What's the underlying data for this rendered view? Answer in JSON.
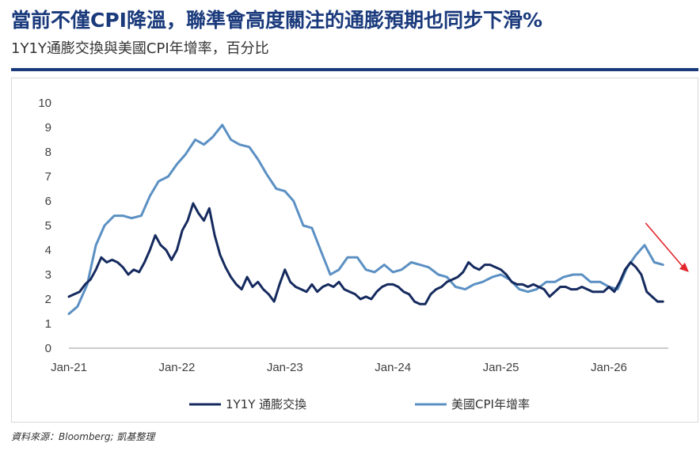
{
  "header": {
    "title": "當前不僅CPI降溫，聯準會高度關注的通膨預期也同步下滑%",
    "subtitle": "1Y1Y通膨交換與美國CPI年增率，百分比"
  },
  "footer": {
    "source": "資料來源：Bloomberg; 凱基整理"
  },
  "colors": {
    "title": "#1a3a7c",
    "series_1": "#152a5e",
    "series_2": "#5b90c3",
    "arrow": "#e3262a"
  },
  "chart_data": {
    "type": "line",
    "title": "",
    "xlabel": "",
    "ylabel": "",
    "ylim": [
      0,
      10
    ],
    "yticks": [
      "0",
      "1",
      "2",
      "3",
      "4",
      "5",
      "6",
      "7",
      "8",
      "9",
      "10"
    ],
    "xticks": [
      {
        "label": "Jan-21",
        "x": 2021.0
      },
      {
        "label": "Jan-22",
        "x": 2022.0
      },
      {
        "label": "Jan-23",
        "x": 2023.0
      },
      {
        "label": "Jan-24",
        "x": 2024.0
      },
      {
        "label": "Jan-25",
        "x": 2025.0
      },
      {
        "label": "Jan-26",
        "x": 2026.0
      }
    ],
    "xlim": [
      2021.0,
      2026.55
    ],
    "grid": false,
    "legend": "bottom",
    "series": [
      {
        "name": "1Y1Y 通膨交換",
        "x": [
          2021.0,
          2021.05,
          2021.1,
          2021.15,
          2021.2,
          2021.25,
          2021.3,
          2021.35,
          2021.4,
          2021.45,
          2021.5,
          2021.55,
          2021.6,
          2021.65,
          2021.7,
          2021.75,
          2021.8,
          2021.85,
          2021.9,
          2021.95,
          2022.0,
          2022.05,
          2022.1,
          2022.15,
          2022.2,
          2022.25,
          2022.3,
          2022.35,
          2022.4,
          2022.45,
          2022.5,
          2022.55,
          2022.6,
          2022.65,
          2022.7,
          2022.75,
          2022.8,
          2022.85,
          2022.9,
          2022.95,
          2023.0,
          2023.05,
          2023.1,
          2023.15,
          2023.2,
          2023.25,
          2023.3,
          2023.35,
          2023.4,
          2023.45,
          2023.5,
          2023.55,
          2023.6,
          2023.65,
          2023.7,
          2023.75,
          2023.8,
          2023.85,
          2023.9,
          2023.95,
          2024.0,
          2024.05,
          2024.1,
          2024.15,
          2024.2,
          2024.25,
          2024.3,
          2024.35,
          2024.4,
          2024.45,
          2024.5,
          2024.55,
          2024.6,
          2024.65,
          2024.7,
          2024.75,
          2024.8,
          2024.85,
          2024.9,
          2024.95,
          2025.0,
          2025.05,
          2025.1,
          2025.15,
          2025.2,
          2025.25,
          2025.3,
          2025.35,
          2025.4,
          2025.45,
          2025.5,
          2025.55,
          2025.6,
          2025.65,
          2025.7,
          2025.75,
          2025.8,
          2025.85,
          2025.9,
          2025.95,
          2026.0,
          2026.05,
          2026.1,
          2026.15,
          2026.2,
          2026.25,
          2026.3,
          2026.35,
          2026.4,
          2026.45,
          2026.5
        ],
        "values": [
          2.1,
          2.2,
          2.3,
          2.6,
          2.8,
          3.2,
          3.7,
          3.5,
          3.6,
          3.5,
          3.3,
          3.0,
          3.2,
          3.1,
          3.5,
          4.0,
          4.6,
          4.2,
          4.0,
          3.6,
          4.0,
          4.8,
          5.2,
          5.9,
          5.5,
          5.2,
          5.7,
          4.6,
          3.8,
          3.3,
          2.9,
          2.6,
          2.4,
          2.9,
          2.5,
          2.7,
          2.4,
          2.2,
          1.9,
          2.6,
          3.2,
          2.7,
          2.5,
          2.4,
          2.3,
          2.6,
          2.3,
          2.5,
          2.6,
          2.5,
          2.7,
          2.4,
          2.3,
          2.2,
          2.0,
          2.1,
          2.0,
          2.3,
          2.5,
          2.6,
          2.6,
          2.5,
          2.3,
          2.2,
          1.9,
          1.8,
          1.8,
          2.2,
          2.4,
          2.5,
          2.7,
          2.8,
          2.9,
          3.1,
          3.5,
          3.3,
          3.2,
          3.4,
          3.4,
          3.3,
          3.2,
          3.0,
          2.7,
          2.6,
          2.6,
          2.5,
          2.6,
          2.5,
          2.4,
          2.1,
          2.3,
          2.5,
          2.5,
          2.4,
          2.4,
          2.5,
          2.4,
          2.3,
          2.3,
          2.3,
          2.5,
          2.3,
          2.7,
          3.2,
          3.5,
          3.3,
          3.0,
          2.3,
          2.1,
          1.9,
          1.9
        ]
      },
      {
        "name": "美國CPI年增率",
        "x": [
          2021.0,
          2021.08,
          2021.17,
          2021.25,
          2021.33,
          2021.42,
          2021.5,
          2021.58,
          2021.67,
          2021.75,
          2021.83,
          2021.92,
          2022.0,
          2022.08,
          2022.17,
          2022.25,
          2022.33,
          2022.42,
          2022.5,
          2022.58,
          2022.67,
          2022.75,
          2022.83,
          2022.92,
          2023.0,
          2023.08,
          2023.17,
          2023.25,
          2023.33,
          2023.42,
          2023.5,
          2023.58,
          2023.67,
          2023.75,
          2023.83,
          2023.92,
          2024.0,
          2024.08,
          2024.17,
          2024.25,
          2024.33,
          2024.42,
          2024.5,
          2024.58,
          2024.67,
          2024.75,
          2024.83,
          2024.92,
          2025.0,
          2025.08,
          2025.17,
          2025.25,
          2025.33,
          2025.42,
          2025.5,
          2025.58,
          2025.67,
          2025.75,
          2025.83,
          2025.92,
          2026.0,
          2026.08,
          2026.17,
          2026.25,
          2026.33,
          2026.42,
          2026.5
        ],
        "values": [
          1.4,
          1.7,
          2.6,
          4.2,
          5.0,
          5.4,
          5.4,
          5.3,
          5.4,
          6.2,
          6.8,
          7.0,
          7.5,
          7.9,
          8.5,
          8.3,
          8.6,
          9.1,
          8.5,
          8.3,
          8.2,
          7.7,
          7.1,
          6.5,
          6.4,
          6.0,
          5.0,
          4.9,
          4.0,
          3.0,
          3.2,
          3.7,
          3.7,
          3.2,
          3.1,
          3.4,
          3.1,
          3.2,
          3.5,
          3.4,
          3.3,
          3.0,
          2.9,
          2.5,
          2.4,
          2.6,
          2.7,
          2.9,
          3.0,
          2.8,
          2.4,
          2.3,
          2.4,
          2.7,
          2.7,
          2.9,
          3.0,
          3.0,
          2.7,
          2.7,
          2.5,
          2.4,
          3.3,
          3.8,
          4.2,
          3.5,
          3.4
        ]
      }
    ]
  }
}
